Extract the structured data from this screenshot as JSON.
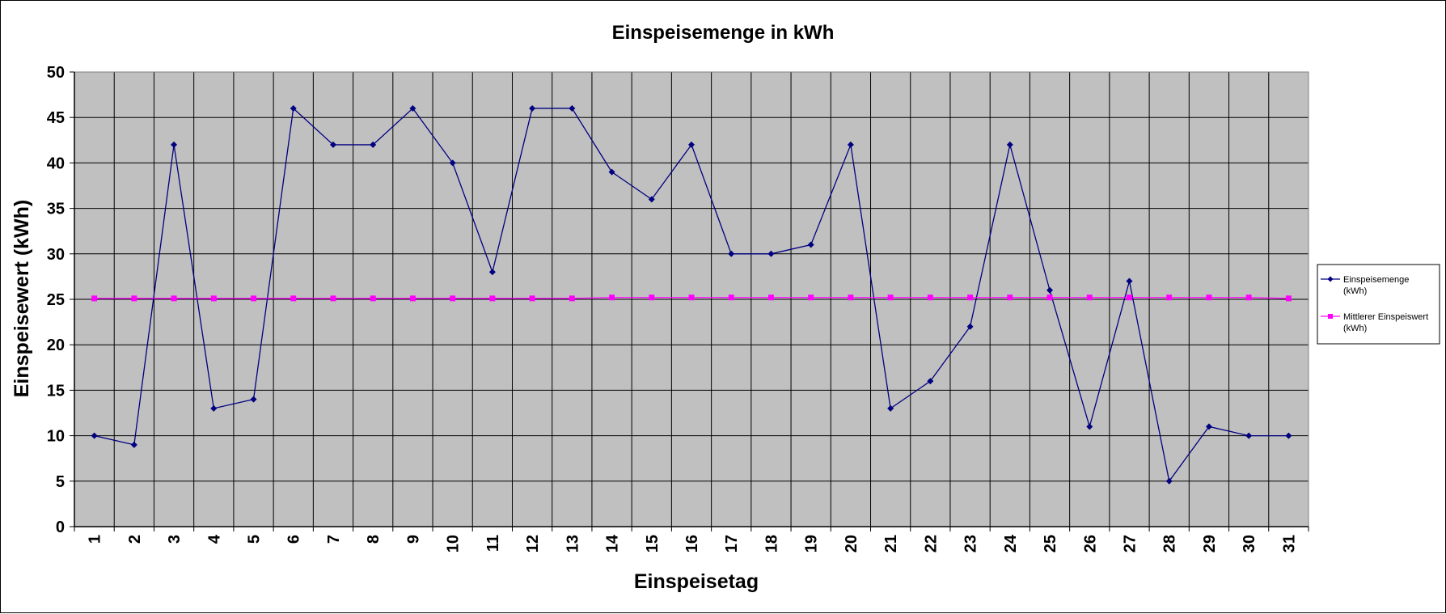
{
  "chart_data": {
    "type": "line",
    "title": "Einspeisemenge in kWh",
    "xlabel": "Einspeisetag",
    "ylabel": "Einspeisewert  (kWh)",
    "categories": [
      "1",
      "2",
      "3",
      "4",
      "5",
      "6",
      "7",
      "8",
      "9",
      "10",
      "11",
      "12",
      "13",
      "14",
      "15",
      "16",
      "17",
      "18",
      "19",
      "20",
      "21",
      "22",
      "23",
      "24",
      "25",
      "26",
      "27",
      "28",
      "29",
      "30",
      "31"
    ],
    "ylim": [
      0,
      50
    ],
    "yticks": [
      "0",
      "5",
      "10",
      "15",
      "20",
      "25",
      "30",
      "35",
      "40",
      "45",
      "50"
    ],
    "grid": true,
    "legend_position": "right",
    "plot_background": "#c0c0c0",
    "series": [
      {
        "name": "Einspeisemenge (kWh)",
        "name_lines": [
          "Einspeisemenge",
          "(kWh)"
        ],
        "color": "#000080",
        "marker": "diamond",
        "values": [
          10,
          9,
          42,
          13,
          14,
          46,
          42,
          42,
          46,
          40,
          28,
          46,
          46,
          39,
          36,
          42,
          30,
          30,
          31,
          42,
          13,
          16,
          22,
          42,
          26,
          11,
          27,
          5,
          11,
          10,
          10
        ]
      },
      {
        "name": "Mittlerer Einspeiswert (kWh)",
        "name_lines": [
          "Mittlerer Einspeiswert",
          "(kWh)"
        ],
        "color": "#ff00ff",
        "marker": "square",
        "values": [
          25.1,
          25.1,
          25.1,
          25.1,
          25.1,
          25.1,
          25.1,
          25.1,
          25.1,
          25.1,
          25.1,
          25.1,
          25.1,
          25.2,
          25.2,
          25.2,
          25.2,
          25.2,
          25.2,
          25.2,
          25.2,
          25.2,
          25.2,
          25.2,
          25.2,
          25.2,
          25.2,
          25.2,
          25.2,
          25.2,
          25.1
        ]
      }
    ]
  }
}
